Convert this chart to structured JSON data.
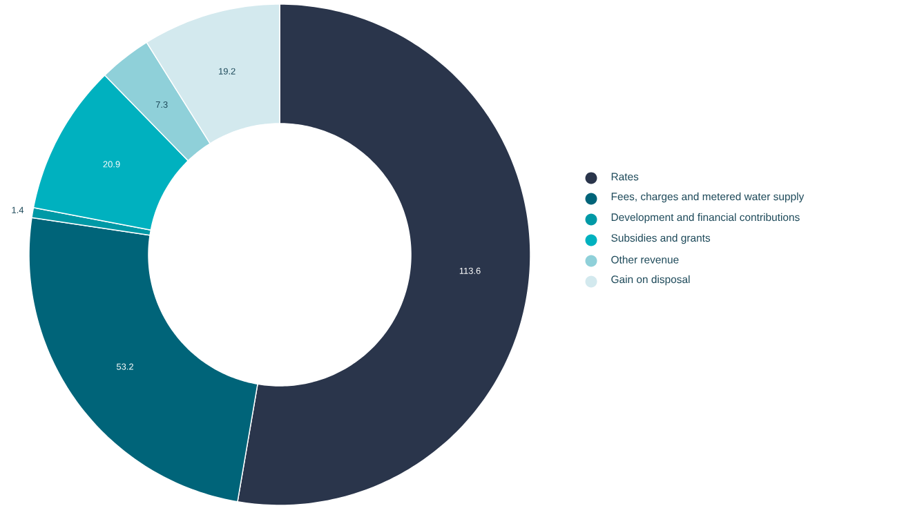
{
  "chart_data": {
    "type": "donut",
    "categories": [
      "Rates",
      "Fees, charges and metered water supply",
      "Development and financial contributions",
      "Subsidies and grants",
      "Other revenue",
      "Gain on disposal"
    ],
    "values": [
      113.6,
      53.2,
      1.4,
      20.9,
      7.3,
      19.2
    ],
    "colors": [
      "#2a354b",
      "#006479",
      "#0099a6",
      "#00b1bf",
      "#8fd0d9",
      "#d3e9ee"
    ],
    "data_labels": true,
    "legend": "right"
  }
}
